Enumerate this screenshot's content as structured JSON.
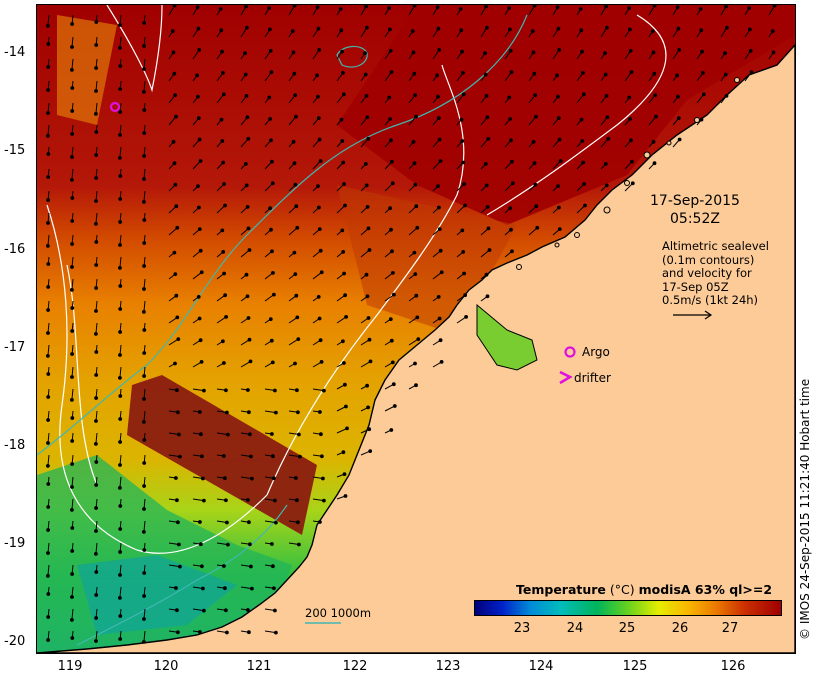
{
  "map": {
    "y_axis_labels": [
      "-14",
      "-15",
      "-16",
      "-17",
      "-18",
      "-19",
      "-20"
    ],
    "x_axis_labels": [
      "119",
      "120",
      "121",
      "122",
      "123",
      "124",
      "125",
      "126"
    ],
    "lat_range": [
      -20.1,
      -13.6
    ],
    "lon_range": [
      118.68,
      126.7
    ]
  },
  "timestamp": {
    "date": "17-Sep-2015",
    "time": "05:52Z"
  },
  "altimetry_note": {
    "lines": [
      "Altimetric sealevel",
      "(0.1m contours)",
      "and velocity for",
      "17-Sep 05Z",
      "0.5m/s (1kt 24h)"
    ]
  },
  "legend": {
    "argo_label": "Argo",
    "drifter_label": "drifter",
    "argo_color": "#e010e0",
    "drifter_color": "#e010e0"
  },
  "colorbar": {
    "title_bold": "Temperature",
    "title_unit": " (°C) ",
    "title_rest": "modisA 63% ql>=2",
    "ticks": [
      "23",
      "24",
      "25",
      "26",
      "27"
    ],
    "min": 22.2,
    "max": 27.8
  },
  "scale": {
    "label": "200  1000m",
    "line_color": "#40b8b0"
  },
  "credit": "© IMOS 24-Sep-2015 11:21:40 Hobart time",
  "colors": {
    "land": "#fccb98",
    "warm_sea": "#a00000",
    "contour_white": "#ffffff",
    "contour_cyan": "#40b8b0"
  },
  "argo_float": {
    "lon": 119.45,
    "lat": -14.55
  }
}
